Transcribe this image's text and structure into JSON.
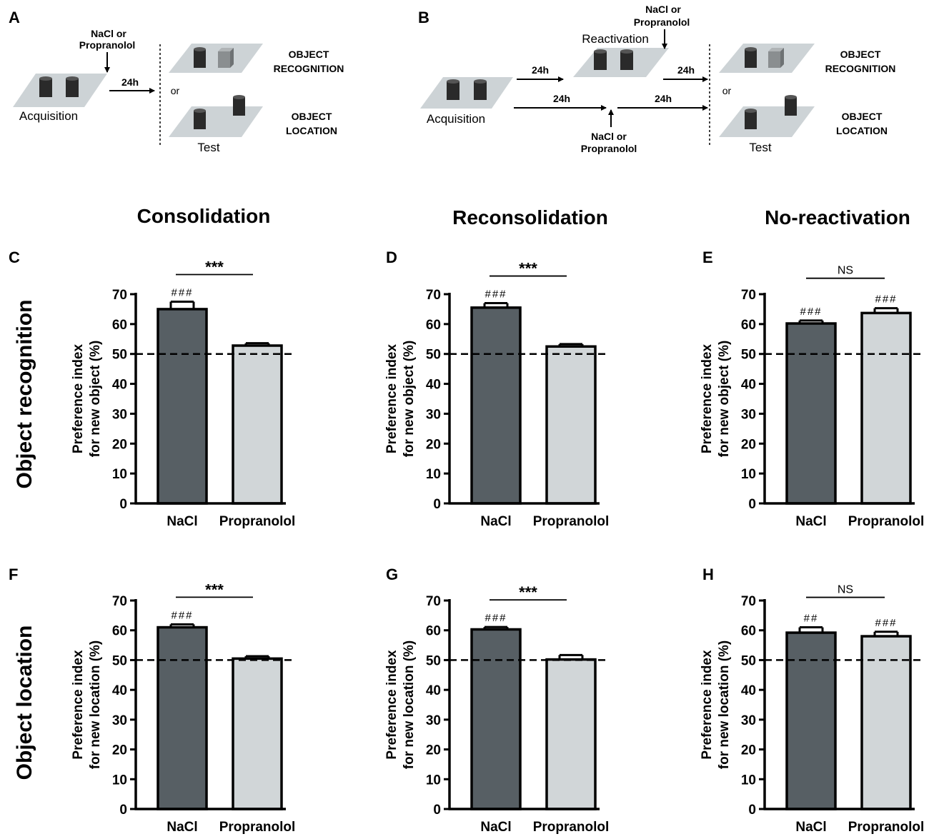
{
  "colors": {
    "nacl_fill": "#575f64",
    "prop_fill": "#d1d6d8",
    "stroke": "#000000",
    "platform": "#cdd3d6",
    "cylinder": "#2a2a2a",
    "cube": "#8a8e90"
  },
  "schematic_a": {
    "letter": "A",
    "drug_line1": "NaCl or",
    "drug_line2": "Propranolol",
    "acquisition": "Acquisition",
    "delay": "24h",
    "or": "or",
    "test": "Test",
    "recog_line1": "OBJECT",
    "recog_line2": "RECOGNITION",
    "loc_line1": "OBJECT",
    "loc_line2": "LOCATION"
  },
  "schematic_b": {
    "letter": "B",
    "acquisition": "Acquisition",
    "reactivation": "Reactivation",
    "drug_top_line1": "NaCl or",
    "drug_top_line2": "Propranolol",
    "drug_bottom_line1": "NaCl or",
    "drug_bottom_line2": "Propranolol",
    "delay1": "24h",
    "delay2": "24h",
    "delay3": "24h",
    "delay4": "24h",
    "or": "or",
    "test": "Test",
    "recog_line1": "OBJECT",
    "recog_line2": "RECOGNITION",
    "loc_line1": "OBJECT",
    "loc_line2": "LOCATION"
  },
  "column_titles": [
    "Consolidation",
    "Reconsolidation",
    "No-reactivation"
  ],
  "row_titles": [
    "Object recognition",
    "Object location"
  ],
  "chart_data": [
    {
      "panel": "C",
      "type": "bar",
      "ylabel_line1": "Preference index",
      "ylabel_line2": "for new object (%)",
      "categories": [
        "NaCl",
        "Propranolol"
      ],
      "values": [
        65,
        52.8
      ],
      "errors": [
        2.5,
        0.8
      ],
      "annotations": [
        "###",
        ""
      ],
      "comparison": "***",
      "ylim": [
        0,
        70
      ],
      "yticks": [
        "0",
        "10",
        "20",
        "30",
        "40",
        "50",
        "60",
        "70"
      ],
      "reference_line": 50
    },
    {
      "panel": "D",
      "type": "bar",
      "ylabel_line1": "Preference index",
      "ylabel_line2": "for new object (%)",
      "categories": [
        "NaCl",
        "Propranolol"
      ],
      "values": [
        65.5,
        52.5
      ],
      "errors": [
        1.5,
        0.8
      ],
      "annotations": [
        "###",
        ""
      ],
      "comparison": "***",
      "ylim": [
        0,
        70
      ],
      "yticks": [
        "0",
        "10",
        "20",
        "30",
        "40",
        "50",
        "60",
        "70"
      ],
      "reference_line": 50
    },
    {
      "panel": "E",
      "type": "bar",
      "ylabel_line1": "Preference index",
      "ylabel_line2": "for new object (%)",
      "categories": [
        "NaCl",
        "Propranolol"
      ],
      "values": [
        60.2,
        63.7
      ],
      "errors": [
        1.0,
        1.6
      ],
      "annotations": [
        "###",
        "###"
      ],
      "comparison": "NS",
      "ylim": [
        0,
        70
      ],
      "yticks": [
        "0",
        "10",
        "20",
        "30",
        "40",
        "50",
        "60",
        "70"
      ],
      "reference_line": 50
    },
    {
      "panel": "F",
      "type": "bar",
      "ylabel_line1": "Preference index",
      "ylabel_line2": "for new location (%)",
      "categories": [
        "NaCl",
        "Propranolol"
      ],
      "values": [
        61,
        50.5
      ],
      "errors": [
        1.0,
        0.8
      ],
      "annotations": [
        "###",
        ""
      ],
      "comparison": "***",
      "ylim": [
        0,
        70
      ],
      "yticks": [
        "0",
        "10",
        "20",
        "30",
        "40",
        "50",
        "60",
        "70"
      ],
      "reference_line": 50
    },
    {
      "panel": "G",
      "type": "bar",
      "ylabel_line1": "Preference index",
      "ylabel_line2": "for new location (%)",
      "categories": [
        "NaCl",
        "Propranolol"
      ],
      "values": [
        60.3,
        50.2
      ],
      "errors": [
        0.8,
        1.5
      ],
      "annotations": [
        "###",
        ""
      ],
      "comparison": "***",
      "ylim": [
        0,
        70
      ],
      "yticks": [
        "0",
        "10",
        "20",
        "30",
        "40",
        "50",
        "60",
        "70"
      ],
      "reference_line": 50
    },
    {
      "panel": "H",
      "type": "bar",
      "ylabel_line1": "Preference index",
      "ylabel_line2": "for new location (%)",
      "categories": [
        "NaCl",
        "Propranolol"
      ],
      "values": [
        59.2,
        58
      ],
      "errors": [
        1.8,
        1.5
      ],
      "annotations": [
        "##",
        "###"
      ],
      "comparison": "NS",
      "ylim": [
        0,
        70
      ],
      "yticks": [
        "0",
        "10",
        "20",
        "30",
        "40",
        "50",
        "60",
        "70"
      ],
      "reference_line": 50
    }
  ]
}
